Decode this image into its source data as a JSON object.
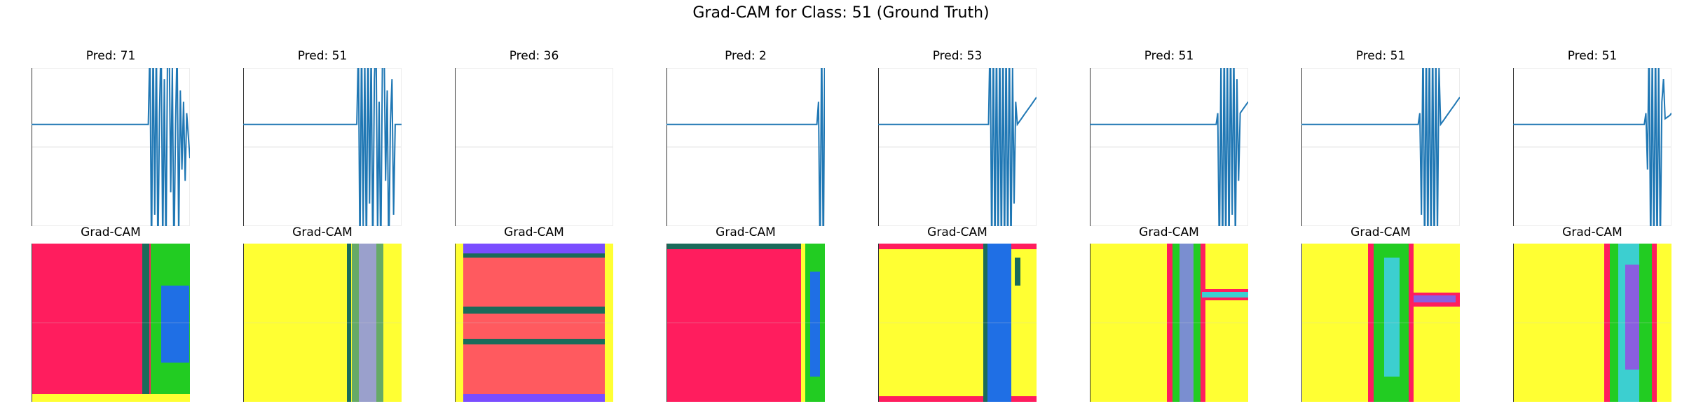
{
  "figure": {
    "title": "Grad-CAM for Class: 51 (Ground Truth)"
  },
  "chart_data": {
    "type": "line",
    "title": "Grad-CAM for Class: 51 (Ground Truth)",
    "grid": true,
    "colors": {
      "signal": "#1f77b4",
      "heat_pink": "#ff1d5e",
      "heat_yellow": "#ffff33",
      "heat_blue": "#1f6fe5",
      "heat_green": "#22cc22",
      "heat_teal": "#1a6b5a"
    },
    "samples": [
      {
        "pred_label": "Pred: 71",
        "cam_label": "Grad-CAM",
        "pred": 71,
        "signal": [
          0.2,
          0.2,
          0.2,
          0.2,
          0.2,
          0.2,
          0.2,
          0.2,
          0.2,
          0.2,
          0.2,
          0.2,
          0.2,
          0.2,
          0.2,
          0.2,
          0.2,
          0.2,
          0.2,
          0.2,
          0.2,
          0.2,
          0.2,
          0.2,
          0.2,
          0.2,
          0.2,
          0.2,
          0.2,
          0.2,
          0.2,
          0.2,
          0.2,
          0.2,
          0.2,
          0.2,
          0.2,
          0.2,
          0.2,
          0.2,
          0.2,
          0.2,
          0.2,
          0.2,
          0.2,
          0.2,
          0.2,
          0.2,
          0.2,
          0.2,
          0.2,
          0.2,
          0.2,
          0.2,
          0.2,
          0.2,
          0.2,
          0.2,
          0.2,
          0.2,
          0.2,
          0.2,
          0.2,
          0.2,
          0.2,
          0.2,
          0.2,
          0.2,
          0.2,
          0.2,
          0.2,
          0.2,
          0.2,
          0.2,
          0.9,
          -1.0,
          1.0,
          -0.6,
          0.95,
          -1.0,
          0.3,
          1.0,
          -0.9,
          0.6,
          -1.0,
          0.8,
          1.0,
          -0.4,
          0.7,
          -1.0,
          0.2,
          0.9,
          -0.8,
          0.5,
          -0.2,
          0.4,
          -0.3,
          0.3,
          0.1,
          -0.1
        ]
      },
      {
        "pred_label": "Pred: 51",
        "cam_label": "Grad-CAM",
        "pred": 51,
        "signal": [
          0.2,
          0.2,
          0.2,
          0.2,
          0.2,
          0.2,
          0.2,
          0.2,
          0.2,
          0.2,
          0.2,
          0.2,
          0.2,
          0.2,
          0.2,
          0.2,
          0.2,
          0.2,
          0.2,
          0.2,
          0.2,
          0.2,
          0.2,
          0.2,
          0.2,
          0.2,
          0.2,
          0.2,
          0.2,
          0.2,
          0.2,
          0.2,
          0.2,
          0.2,
          0.2,
          0.2,
          0.2,
          0.2,
          0.2,
          0.2,
          0.2,
          0.2,
          0.2,
          0.2,
          0.2,
          0.2,
          0.2,
          0.2,
          0.2,
          0.2,
          0.2,
          0.2,
          0.2,
          0.2,
          0.2,
          0.2,
          0.2,
          0.2,
          0.2,
          0.2,
          0.2,
          0.2,
          0.2,
          0.2,
          0.2,
          0.2,
          0.2,
          0.2,
          0.2,
          0.2,
          0.2,
          0.2,
          0.9,
          -1.0,
          1.0,
          -0.7,
          0.8,
          -1.0,
          1.0,
          -0.5,
          0.9,
          -1.0,
          0.6,
          1.0,
          -0.8,
          0.4,
          -1.0,
          0.7,
          1.0,
          -0.3,
          0.5,
          -1.0,
          0.2,
          0.6,
          -0.6,
          0.2,
          0.2,
          0.2,
          0.2,
          0.2
        ]
      },
      {
        "pred_label": "Pred: 36",
        "cam_label": "Grad-CAM",
        "pred": 36,
        "signal": []
      },
      {
        "pred_label": "Pred: 2",
        "cam_label": "Grad-CAM",
        "pred": 2,
        "signal": [
          0.2,
          0.2,
          0.2,
          0.2,
          0.2,
          0.2,
          0.2,
          0.2,
          0.2,
          0.2,
          0.2,
          0.2,
          0.2,
          0.2,
          0.2,
          0.2,
          0.2,
          0.2,
          0.2,
          0.2,
          0.2,
          0.2,
          0.2,
          0.2,
          0.2,
          0.2,
          0.2,
          0.2,
          0.2,
          0.2,
          0.2,
          0.2,
          0.2,
          0.2,
          0.2,
          0.2,
          0.2,
          0.2,
          0.2,
          0.2,
          0.2,
          0.2,
          0.2,
          0.2,
          0.2,
          0.2,
          0.2,
          0.2,
          0.2,
          0.2,
          0.2,
          0.2,
          0.2,
          0.2,
          0.2,
          0.2,
          0.2,
          0.2,
          0.2,
          0.2,
          0.2,
          0.2,
          0.2,
          0.2,
          0.2,
          0.2,
          0.2,
          0.2,
          0.2,
          0.2,
          0.2,
          0.2,
          0.2,
          0.2,
          0.2,
          0.2,
          0.2,
          0.2,
          0.2,
          0.2,
          0.2,
          0.2,
          0.2,
          0.2,
          0.2,
          0.2,
          0.2,
          0.2,
          0.2,
          0.2,
          0.2,
          0.2,
          0.2,
          0.2,
          0.2,
          0.4,
          -1.0,
          1.0,
          -1.0,
          1.0
        ]
      },
      {
        "pred_label": "Pred: 53",
        "cam_label": "Grad-CAM",
        "pred": 53,
        "signal": [
          0.2,
          0.2,
          0.2,
          0.2,
          0.2,
          0.2,
          0.2,
          0.2,
          0.2,
          0.2,
          0.2,
          0.2,
          0.2,
          0.2,
          0.2,
          0.2,
          0.2,
          0.2,
          0.2,
          0.2,
          0.2,
          0.2,
          0.2,
          0.2,
          0.2,
          0.2,
          0.2,
          0.2,
          0.2,
          0.2,
          0.2,
          0.2,
          0.2,
          0.2,
          0.2,
          0.2,
          0.2,
          0.2,
          0.2,
          0.2,
          0.2,
          0.2,
          0.2,
          0.2,
          0.2,
          0.2,
          0.2,
          0.2,
          0.2,
          0.2,
          0.2,
          0.2,
          0.2,
          0.2,
          0.2,
          0.2,
          0.2,
          0.2,
          0.2,
          0.2,
          0.2,
          0.2,
          0.2,
          0.2,
          0.2,
          0.2,
          0.2,
          0.2,
          0.2,
          0.2,
          1.0,
          -1.0,
          1.0,
          -1.0,
          1.0,
          -1.0,
          1.0,
          -1.0,
          1.0,
          -1.0,
          1.0,
          -1.0,
          1.0,
          -1.0,
          0.7,
          -0.5,
          0.4,
          0.2,
          0.22,
          0.24,
          0.26,
          0.28,
          0.3,
          0.32,
          0.34,
          0.36,
          0.38,
          0.4,
          0.42,
          0.44
        ]
      },
      {
        "pred_label": "Pred: 51",
        "cam_label": "Grad-CAM",
        "pred": 51,
        "signal": [
          0.2,
          0.2,
          0.2,
          0.2,
          0.2,
          0.2,
          0.2,
          0.2,
          0.2,
          0.2,
          0.2,
          0.2,
          0.2,
          0.2,
          0.2,
          0.2,
          0.2,
          0.2,
          0.2,
          0.2,
          0.2,
          0.2,
          0.2,
          0.2,
          0.2,
          0.2,
          0.2,
          0.2,
          0.2,
          0.2,
          0.2,
          0.2,
          0.2,
          0.2,
          0.2,
          0.2,
          0.2,
          0.2,
          0.2,
          0.2,
          0.2,
          0.2,
          0.2,
          0.2,
          0.2,
          0.2,
          0.2,
          0.2,
          0.2,
          0.2,
          0.2,
          0.2,
          0.2,
          0.2,
          0.2,
          0.2,
          0.2,
          0.2,
          0.2,
          0.2,
          0.2,
          0.2,
          0.2,
          0.2,
          0.2,
          0.2,
          0.2,
          0.2,
          0.2,
          0.2,
          0.2,
          0.2,
          0.2,
          0.2,
          0.2,
          0.2,
          0.2,
          0.2,
          0.2,
          0.2,
          0.3,
          -1.0,
          0.8,
          -1.0,
          1.0,
          -1.0,
          0.9,
          -1.0,
          1.0,
          -0.6,
          0.9,
          -0.9,
          0.6,
          -0.3,
          0.3,
          0.32,
          0.34,
          0.36,
          0.38,
          0.4
        ]
      },
      {
        "pred_label": "Pred: 51",
        "cam_label": "Grad-CAM",
        "pred": 51,
        "signal": [
          0.2,
          0.2,
          0.2,
          0.2,
          0.2,
          0.2,
          0.2,
          0.2,
          0.2,
          0.2,
          0.2,
          0.2,
          0.2,
          0.2,
          0.2,
          0.2,
          0.2,
          0.2,
          0.2,
          0.2,
          0.2,
          0.2,
          0.2,
          0.2,
          0.2,
          0.2,
          0.2,
          0.2,
          0.2,
          0.2,
          0.2,
          0.2,
          0.2,
          0.2,
          0.2,
          0.2,
          0.2,
          0.2,
          0.2,
          0.2,
          0.2,
          0.2,
          0.2,
          0.2,
          0.2,
          0.2,
          0.2,
          0.2,
          0.2,
          0.2,
          0.2,
          0.2,
          0.2,
          0.2,
          0.2,
          0.2,
          0.2,
          0.2,
          0.2,
          0.2,
          0.2,
          0.2,
          0.2,
          0.2,
          0.2,
          0.2,
          0.2,
          0.2,
          0.2,
          0.2,
          0.2,
          0.2,
          0.2,
          0.2,
          0.3,
          -0.6,
          1.0,
          -1.0,
          1.0,
          -1.0,
          1.0,
          -1.0,
          1.0,
          -1.0,
          0.9,
          -0.8,
          0.7,
          0.2,
          0.22,
          0.24,
          0.26,
          0.28,
          0.3,
          0.32,
          0.34,
          0.36,
          0.38,
          0.4,
          0.42,
          0.44
        ]
      },
      {
        "pred_label": "Pred: 51",
        "cam_label": "Grad-CAM",
        "pred": 51,
        "signal": [
          0.2,
          0.2,
          0.2,
          0.2,
          0.2,
          0.2,
          0.2,
          0.2,
          0.2,
          0.2,
          0.2,
          0.2,
          0.2,
          0.2,
          0.2,
          0.2,
          0.2,
          0.2,
          0.2,
          0.2,
          0.2,
          0.2,
          0.2,
          0.2,
          0.2,
          0.2,
          0.2,
          0.2,
          0.2,
          0.2,
          0.2,
          0.2,
          0.2,
          0.2,
          0.2,
          0.2,
          0.2,
          0.2,
          0.2,
          0.2,
          0.2,
          0.2,
          0.2,
          0.2,
          0.2,
          0.2,
          0.2,
          0.2,
          0.2,
          0.2,
          0.2,
          0.2,
          0.2,
          0.2,
          0.2,
          0.2,
          0.2,
          0.2,
          0.2,
          0.2,
          0.2,
          0.2,
          0.2,
          0.2,
          0.2,
          0.2,
          0.2,
          0.2,
          0.2,
          0.2,
          0.2,
          0.2,
          0.2,
          0.2,
          0.2,
          0.2,
          0.2,
          0.2,
          0.2,
          0.2,
          0.2,
          0.2,
          0.2,
          0.3,
          -0.2,
          1.0,
          -1.0,
          0.9,
          -1.0,
          1.0,
          -1.0,
          0.8,
          -0.9,
          0.4,
          0.6,
          0.25,
          0.26,
          0.27,
          0.28,
          0.3
        ]
      }
    ]
  }
}
